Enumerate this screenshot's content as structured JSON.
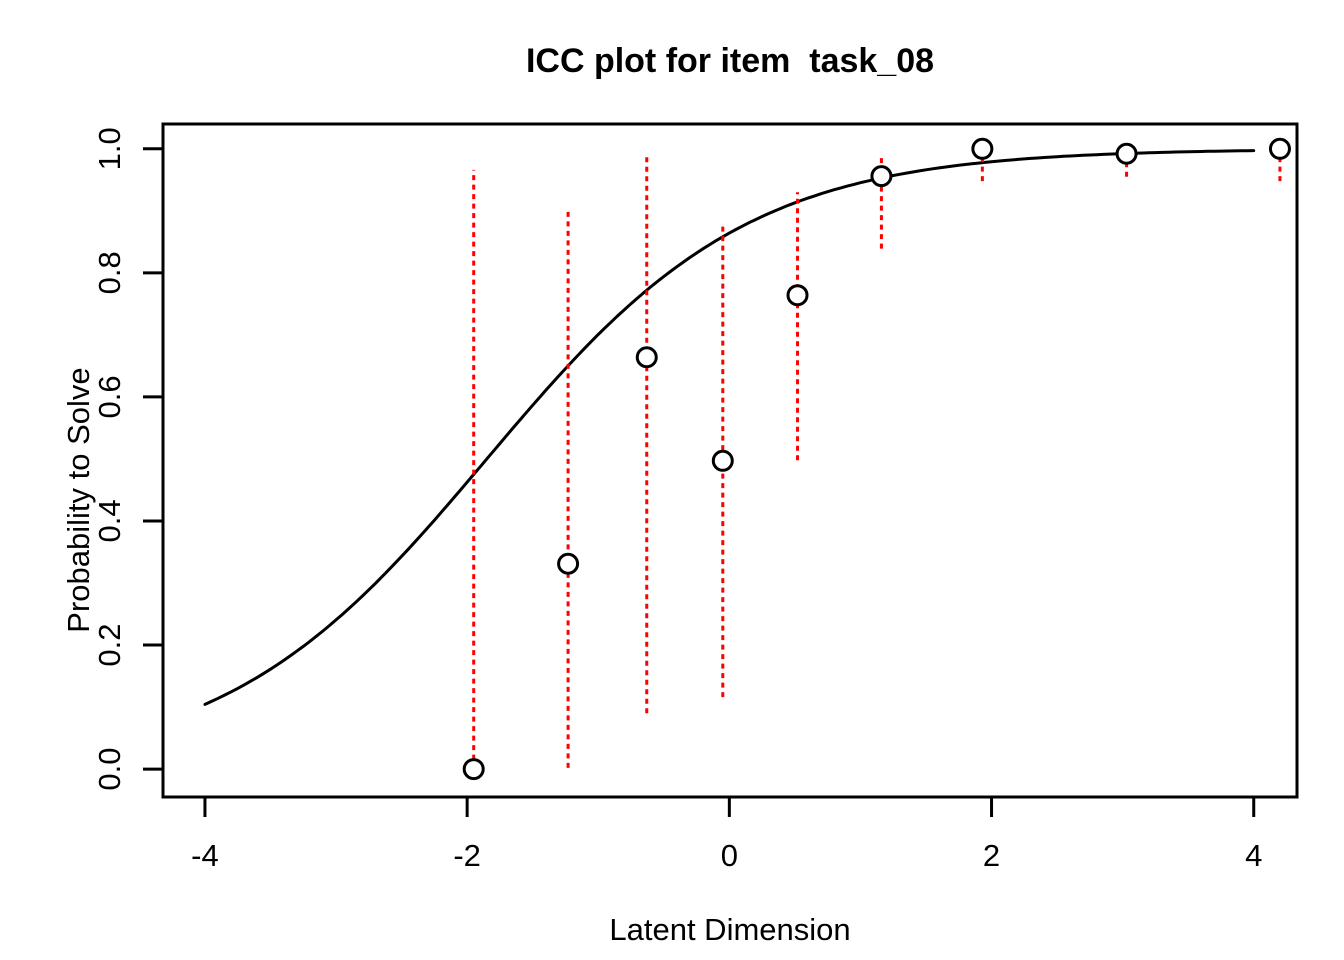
{
  "figure": {
    "background": "#FFFFFF"
  },
  "chart_data": {
    "type": "line",
    "title": "ICC plot for item  task_08",
    "xlabel": "Latent Dimension",
    "ylabel": "Probability to Solve",
    "xlim": [
      -4.32,
      4.33
    ],
    "ylim": [
      -0.045,
      1.04
    ],
    "grid": false,
    "legend": "none",
    "x_ticks": [
      {
        "value": -4,
        "label": "-4"
      },
      {
        "value": -2,
        "label": "-2"
      },
      {
        "value": 0,
        "label": "0"
      },
      {
        "value": 2,
        "label": "2"
      },
      {
        "value": 4,
        "label": "4"
      }
    ],
    "y_ticks": [
      {
        "value": 0.0,
        "label": "0.0"
      },
      {
        "value": 0.2,
        "label": "0.2"
      },
      {
        "value": 0.4,
        "label": "0.4"
      },
      {
        "value": 0.6,
        "label": "0.6"
      },
      {
        "value": 0.8,
        "label": "0.8"
      },
      {
        "value": 1.0,
        "label": "1.0"
      }
    ],
    "curve": {
      "name": "item characteristic curve",
      "model": "logistic",
      "discrimination": 1.0,
      "difficulty": -1.85,
      "x_range": [
        -4,
        4
      ],
      "color": "#000000"
    },
    "points": {
      "name": "empirical proportions with confidence whiskers",
      "marker": "open-circle",
      "marker_color": "#000000",
      "ci_style": "dotted-vertical",
      "ci_color": "#FF0000",
      "values": [
        {
          "x": -1.95,
          "y": 0.0,
          "ci_low": 0.0,
          "ci_high": 0.966
        },
        {
          "x": -1.23,
          "y": 0.331,
          "ci_low": 0.002,
          "ci_high": 0.899
        },
        {
          "x": -0.63,
          "y": 0.664,
          "ci_low": 0.09,
          "ci_high": 0.987
        },
        {
          "x": -0.05,
          "y": 0.497,
          "ci_low": 0.116,
          "ci_high": 0.88
        },
        {
          "x": 0.52,
          "y": 0.764,
          "ci_low": 0.498,
          "ci_high": 0.93
        },
        {
          "x": 1.16,
          "y": 0.956,
          "ci_low": 0.839,
          "ci_high": 0.99
        },
        {
          "x": 1.93,
          "y": 1.0,
          "ci_low": 0.948,
          "ci_high": 1.0
        },
        {
          "x": 3.03,
          "y": 0.992,
          "ci_low": 0.955,
          "ci_high": 1.0
        },
        {
          "x": 4.2,
          "y": 1.0,
          "ci_low": 0.948,
          "ci_high": 1.0
        }
      ]
    },
    "colors": {
      "axis": "#000000",
      "curve": "#000000",
      "ci": "#FF0000",
      "point_stroke": "#000000",
      "point_fill": "#FFFFFF",
      "background": "#FFFFFF"
    }
  }
}
